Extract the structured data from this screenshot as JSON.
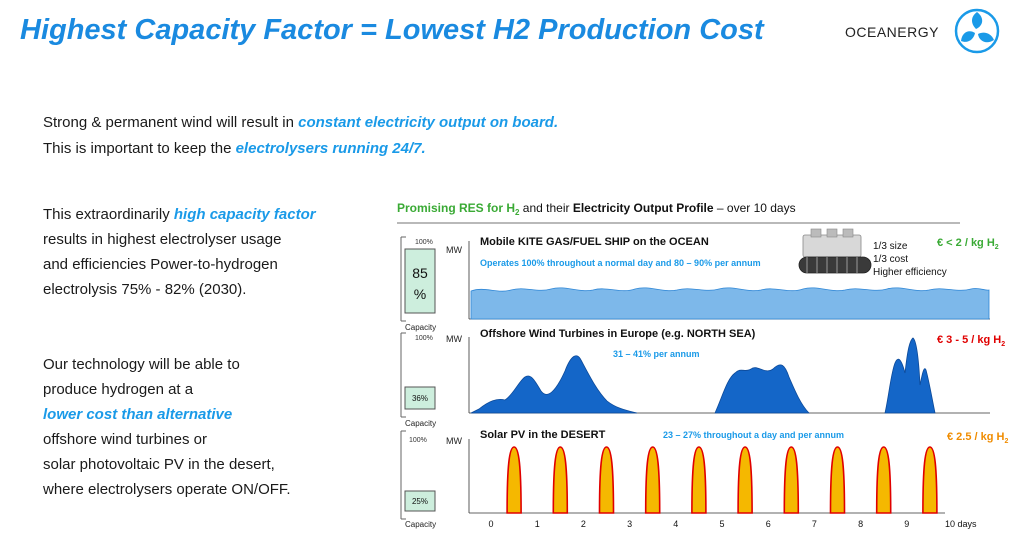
{
  "header": {
    "title": "Highest Capacity Factor  =  Lowest H2 Production Cost",
    "brand": "OCEANERGY"
  },
  "intro": {
    "line1_text": "Strong & permanent wind will result in ",
    "line1_highlight": "constant electricity output on board.",
    "line2_text": "This is important to keep the ",
    "line2_highlight": "electrolysers running 24/7."
  },
  "paragraph1": {
    "t1": "This extraordinarily ",
    "h1": "high capacity factor",
    "line2": "results in highest electrolyser usage",
    "line3": "and efficiencies Power-to-hydrogen",
    "line4": "electrolysis 75% - 82% (2030)."
  },
  "paragraph2": {
    "line1": "Our technology will be able to",
    "line2": "produce hydrogen at a",
    "highlight": "lower cost than alternative",
    "line4": "offshore wind turbines or",
    "line5": "solar photovoltaic PV in the desert,",
    "line6": "where electrolysers operate ON/OFF."
  },
  "graphic": {
    "heading_green": "Promising RES for H",
    "heading_green_sub": "2",
    "heading_mid": " and their ",
    "heading_bold": "Electricity Output Profile",
    "heading_end": " – over 10 days",
    "mw_label": "MW",
    "capacity_label": "Capacity",
    "hundred_label": "100%",
    "colors": {
      "green": "#3aaa35",
      "blue": "#1a9ae8",
      "red": "#e00000",
      "orange": "#f08c00",
      "dark_blue": "#1466c8",
      "light_blue": "#7db8ea"
    },
    "panels": [
      {
        "title": "Mobile KITE GAS/FUEL SHIP on the OCEAN",
        "subtitle": "Operates 100% throughout a normal day and 80 – 90% per annum",
        "capacity_text": "85",
        "capacity_text2": "%",
        "capacity_value": 0.85,
        "cost": "€ < 2 / kg H",
        "cost_sub": "2",
        "notes": [
          "1/3 size",
          "1/3 cost",
          "Higher efficiency"
        ]
      },
      {
        "title": "Offshore Wind Turbines in Europe (e.g. NORTH SEA)",
        "subtitle": "31 – 41% per annum",
        "capacity_text": "36%",
        "capacity_value": 0.36,
        "cost": "€  3 - 5 / kg H",
        "cost_sub": "2"
      },
      {
        "title": "Solar PV in the DESERT",
        "subtitle": "23 – 27% throughout a day and per annum",
        "capacity_text": "25%",
        "capacity_value": 0.25,
        "cost": "€ 2.5 / kg H",
        "cost_sub": "2"
      }
    ],
    "day_ticks": [
      "0",
      "1",
      "2",
      "3",
      "4",
      "5",
      "6",
      "7",
      "8",
      "9"
    ],
    "days_end_label": "10  days"
  }
}
